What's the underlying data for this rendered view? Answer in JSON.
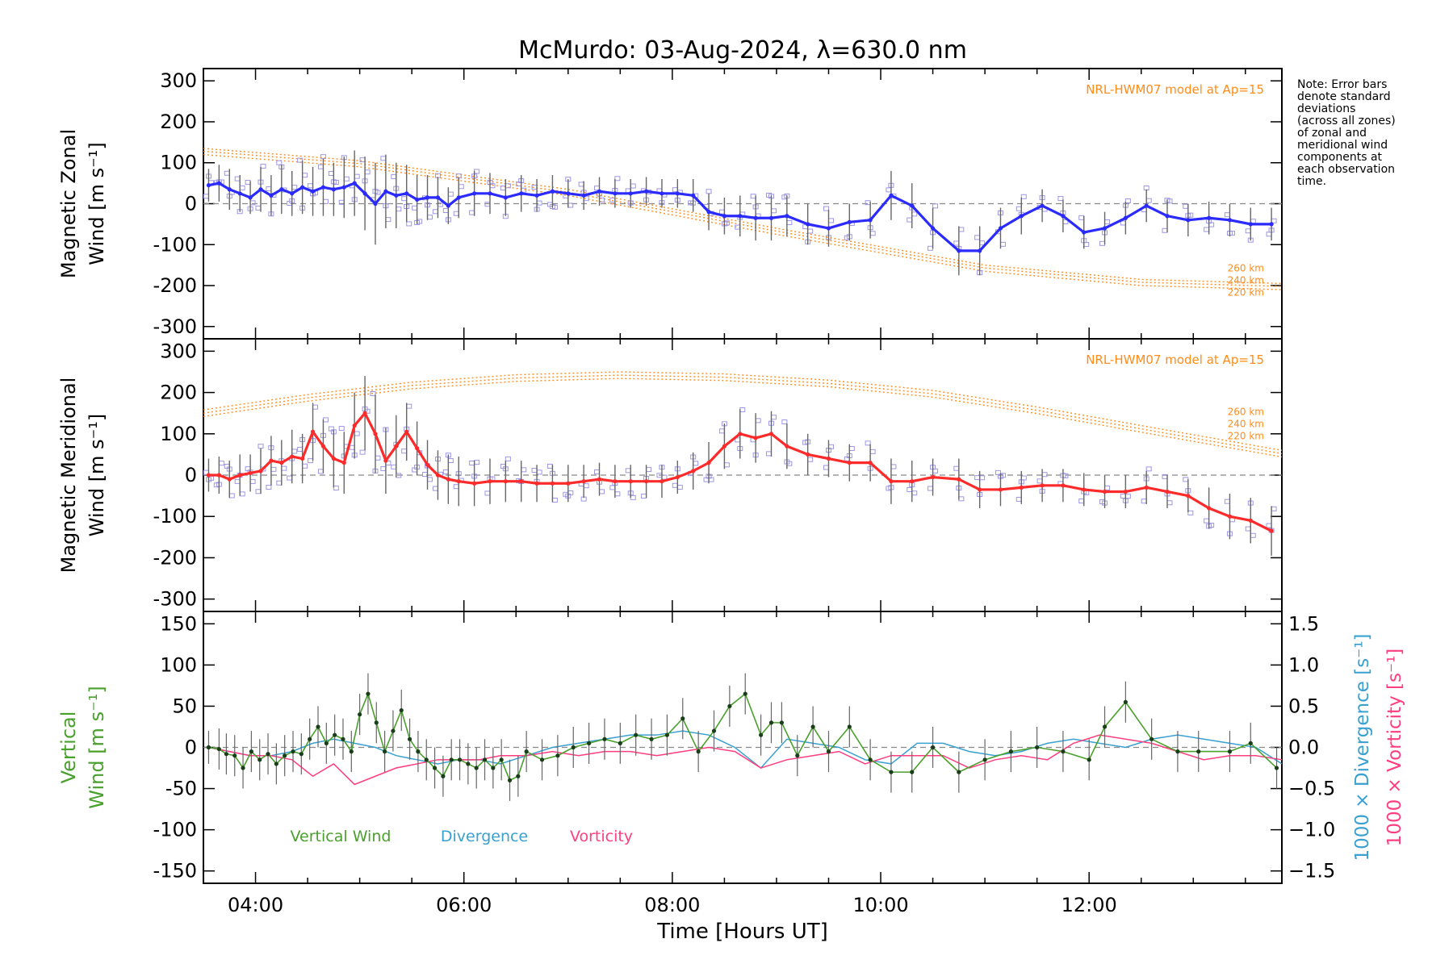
{
  "title": "McMurdo: 03-Aug-2024, λ=630.0 nm",
  "note_lines": [
    "Note: Error bars",
    "denote standard",
    "deviations",
    "(across all zones)",
    "of zonal and",
    "meridional wind",
    "components at",
    "each observation",
    "time."
  ],
  "colors": {
    "zonal": "#2b2bff",
    "meridional": "#ff2b2b",
    "vertical": "#4aa02c",
    "divergence": "#3aa0d0",
    "vorticity": "#ff3d7f",
    "model": "#ff8c1a",
    "scatter": "#9d96e6",
    "errorbar": "#666666"
  },
  "chart_data": [
    {
      "type": "line",
      "name": "zonal",
      "ylabel_lines": [
        "Magnetic Zonal",
        "Wind [m s⁻¹]"
      ],
      "ylim": [
        -330,
        330
      ],
      "yticks": [
        300,
        200,
        100,
        0,
        -100,
        -200,
        -300
      ],
      "xlim": [
        3.5,
        13.85
      ],
      "model_label": "NRL-HWM07 model at Ap=15",
      "model_altitudes": [
        "260 km",
        "240 km",
        "220 km"
      ],
      "model_curves": [
        {
          "x": [
            3.5,
            5,
            7,
            9,
            11,
            12.5,
            13.85
          ],
          "y": [
            135,
            105,
            35,
            -60,
            -150,
            -185,
            -195
          ]
        },
        {
          "x": [
            3.5,
            5,
            7,
            9,
            11,
            12.5,
            13.85
          ],
          "y": [
            128,
            98,
            28,
            -67,
            -157,
            -192,
            -202
          ]
        },
        {
          "x": [
            3.5,
            5,
            7,
            9,
            11,
            12.5,
            13.85
          ],
          "y": [
            120,
            90,
            20,
            -75,
            -165,
            -200,
            -210
          ]
        }
      ],
      "x": [
        3.55,
        3.65,
        3.75,
        3.85,
        3.95,
        4.05,
        4.15,
        4.25,
        4.35,
        4.45,
        4.55,
        4.65,
        4.75,
        4.85,
        4.95,
        5.05,
        5.15,
        5.25,
        5.35,
        5.45,
        5.55,
        5.65,
        5.75,
        5.85,
        5.95,
        6.1,
        6.25,
        6.4,
        6.55,
        6.7,
        6.85,
        7.0,
        7.15,
        7.3,
        7.45,
        7.6,
        7.75,
        7.9,
        8.05,
        8.2,
        8.35,
        8.5,
        8.65,
        8.8,
        8.95,
        9.1,
        9.3,
        9.5,
        9.7,
        9.9,
        10.1,
        10.3,
        10.5,
        10.75,
        10.95,
        11.15,
        11.35,
        11.55,
        11.75,
        11.95,
        12.15,
        12.35,
        12.55,
        12.75,
        12.95,
        13.15,
        13.35,
        13.55,
        13.75
      ],
      "values": [
        45,
        50,
        35,
        25,
        15,
        35,
        20,
        35,
        25,
        40,
        30,
        40,
        35,
        40,
        50,
        25,
        0,
        30,
        20,
        25,
        10,
        15,
        15,
        -5,
        15,
        25,
        25,
        15,
        25,
        20,
        30,
        25,
        20,
        30,
        25,
        25,
        30,
        25,
        25,
        20,
        -20,
        -30,
        -30,
        -35,
        -35,
        -30,
        -50,
        -60,
        -45,
        -40,
        20,
        -5,
        -60,
        -115,
        -115,
        -60,
        -30,
        -5,
        -30,
        -70,
        -60,
        -35,
        -5,
        -30,
        -40,
        -35,
        -40,
        -50,
        -50
      ],
      "errors": [
        40,
        45,
        50,
        45,
        40,
        55,
        50,
        60,
        55,
        65,
        60,
        70,
        65,
        75,
        80,
        90,
        100,
        90,
        80,
        70,
        60,
        55,
        50,
        45,
        50,
        55,
        50,
        45,
        45,
        40,
        40,
        35,
        35,
        35,
        35,
        35,
        35,
        35,
        35,
        40,
        45,
        45,
        50,
        55,
        55,
        50,
        50,
        45,
        45,
        45,
        60,
        55,
        50,
        60,
        60,
        50,
        45,
        40,
        40,
        40,
        40,
        40,
        40,
        40,
        40,
        40,
        40,
        40,
        40
      ]
    },
    {
      "type": "line",
      "name": "meridional",
      "ylabel_lines": [
        "Magnetic Meridional",
        "Wind [m s⁻¹]"
      ],
      "ylim": [
        -330,
        330
      ],
      "yticks": [
        300,
        200,
        100,
        0,
        -100,
        -200,
        -300
      ],
      "xlim": [
        3.5,
        13.85
      ],
      "model_label": "NRL-HWM07 model at Ap=15",
      "model_altitudes": [
        "260 km",
        "240 km",
        "220 km"
      ],
      "model_curves": [
        {
          "x": [
            3.5,
            4.5,
            5.5,
            6.5,
            7.5,
            8.5,
            9.5,
            10.5,
            11.5,
            12.5,
            13.85
          ],
          "y": [
            158,
            195,
            225,
            243,
            250,
            245,
            230,
            205,
            165,
            120,
            60
          ]
        },
        {
          "x": [
            3.5,
            4.5,
            5.5,
            6.5,
            7.5,
            8.5,
            9.5,
            10.5,
            11.5,
            12.5,
            13.85
          ],
          "y": [
            150,
            187,
            217,
            235,
            242,
            237,
            222,
            197,
            157,
            112,
            52
          ]
        },
        {
          "x": [
            3.5,
            4.5,
            5.5,
            6.5,
            7.5,
            8.5,
            9.5,
            10.5,
            11.5,
            12.5,
            13.85
          ],
          "y": [
            142,
            179,
            209,
            227,
            234,
            229,
            214,
            189,
            149,
            104,
            44
          ]
        }
      ],
      "x": [
        3.55,
        3.65,
        3.75,
        3.85,
        3.95,
        4.05,
        4.15,
        4.25,
        4.35,
        4.45,
        4.55,
        4.65,
        4.75,
        4.85,
        4.95,
        5.05,
        5.15,
        5.25,
        5.35,
        5.45,
        5.55,
        5.65,
        5.75,
        5.85,
        5.95,
        6.1,
        6.25,
        6.4,
        6.55,
        6.7,
        6.85,
        7.0,
        7.15,
        7.3,
        7.45,
        7.6,
        7.75,
        7.9,
        8.05,
        8.2,
        8.35,
        8.5,
        8.65,
        8.8,
        8.95,
        9.1,
        9.3,
        9.5,
        9.7,
        9.9,
        10.1,
        10.3,
        10.5,
        10.75,
        10.95,
        11.15,
        11.35,
        11.55,
        11.75,
        11.95,
        12.15,
        12.35,
        12.55,
        12.75,
        12.95,
        13.15,
        13.35,
        13.55,
        13.75
      ],
      "values": [
        0,
        0,
        -10,
        0,
        5,
        10,
        35,
        30,
        45,
        40,
        105,
        70,
        40,
        30,
        120,
        150,
        100,
        35,
        70,
        105,
        65,
        25,
        0,
        -10,
        -15,
        -20,
        -15,
        -15,
        -15,
        -20,
        -20,
        -20,
        -15,
        -10,
        -15,
        -15,
        -15,
        -15,
        -5,
        10,
        30,
        70,
        100,
        90,
        100,
        70,
        50,
        40,
        30,
        30,
        -15,
        -15,
        -5,
        -10,
        -35,
        -35,
        -30,
        -25,
        -25,
        -35,
        -40,
        -40,
        -30,
        -40,
        -50,
        -80,
        -100,
        -110,
        -135
      ],
      "errors": [
        40,
        45,
        45,
        50,
        45,
        55,
        60,
        55,
        65,
        60,
        70,
        65,
        70,
        75,
        80,
        90,
        95,
        80,
        75,
        70,
        65,
        60,
        60,
        60,
        60,
        55,
        55,
        50,
        50,
        45,
        45,
        45,
        40,
        40,
        40,
        40,
        40,
        40,
        40,
        45,
        50,
        55,
        60,
        60,
        55,
        55,
        50,
        45,
        45,
        45,
        55,
        50,
        45,
        50,
        45,
        40,
        40,
        40,
        40,
        40,
        40,
        40,
        40,
        40,
        40,
        50,
        55,
        55,
        60
      ]
    },
    {
      "type": "line",
      "name": "vertical",
      "ylabel_lines": [
        "Vertical",
        "Wind [m s⁻¹]"
      ],
      "ylabel_right1": "1000 × Divergence [s⁻¹]",
      "ylabel_right2": "1000 × Vorticity [s⁻¹]",
      "ylim": [
        -165,
        165
      ],
      "yticks": [
        150,
        100,
        50,
        0,
        -50,
        -100,
        -150
      ],
      "right_ylim": [
        -1.65,
        1.65
      ],
      "right_yticks": [
        1.5,
        1.0,
        0.5,
        0.0,
        -0.5,
        -1.0,
        -1.5
      ],
      "right_tick_labels": [
        "1.5",
        "1.0",
        "0.5",
        "0.0",
        "−0.5",
        "−1.0",
        "−1.5"
      ],
      "xlim": [
        3.5,
        13.85
      ],
      "xticks": [
        4,
        6,
        8,
        10,
        12
      ],
      "xtick_labels": [
        "04:00",
        "06:00",
        "08:00",
        "10:00",
        "12:00"
      ],
      "xlabel": "Time [Hours UT]",
      "legend": [
        "Vertical Wind",
        "Divergence",
        "Vorticity"
      ],
      "series": [
        {
          "name": "Vertical Wind",
          "x": [
            3.55,
            3.65,
            3.72,
            3.8,
            3.88,
            3.96,
            4.04,
            4.12,
            4.2,
            4.28,
            4.36,
            4.44,
            4.52,
            4.6,
            4.68,
            4.76,
            4.84,
            4.92,
            5.0,
            5.08,
            5.16,
            5.24,
            5.32,
            5.4,
            5.48,
            5.56,
            5.64,
            5.72,
            5.8,
            5.88,
            5.96,
            6.04,
            6.12,
            6.2,
            6.28,
            6.36,
            6.44,
            6.52,
            6.6,
            6.75,
            6.9,
            7.05,
            7.2,
            7.35,
            7.5,
            7.65,
            7.8,
            7.95,
            8.1,
            8.25,
            8.4,
            8.55,
            8.7,
            8.85,
            8.95,
            9.05,
            9.2,
            9.35,
            9.5,
            9.7,
            9.9,
            10.1,
            10.3,
            10.5,
            10.75,
            11.0,
            11.25,
            11.5,
            11.75,
            12.0,
            12.15,
            12.35,
            12.6,
            12.85,
            13.05,
            13.35,
            13.55,
            13.8
          ],
          "values": [
            0,
            -2,
            -8,
            -10,
            -25,
            -5,
            -15,
            -8,
            -20,
            -10,
            -5,
            -8,
            10,
            25,
            5,
            15,
            10,
            -5,
            40,
            65,
            30,
            -5,
            20,
            45,
            10,
            -5,
            -15,
            -25,
            -35,
            -15,
            -15,
            -20,
            -25,
            -15,
            -25,
            -15,
            -40,
            -35,
            -5,
            -15,
            -10,
            0,
            5,
            10,
            5,
            15,
            10,
            15,
            35,
            -5,
            20,
            50,
            65,
            15,
            30,
            30,
            -10,
            25,
            -5,
            25,
            -15,
            -30,
            -30,
            0,
            -30,
            -15,
            -5,
            0,
            -5,
            -15,
            25,
            55,
            10,
            -5,
            -5,
            -5,
            5,
            -25
          ],
          "errors": [
            20,
            25,
            25,
            25,
            25,
            25,
            25,
            25,
            25,
            25,
            25,
            25,
            25,
            25,
            25,
            25,
            25,
            25,
            25,
            25,
            25,
            25,
            25,
            25,
            25,
            25,
            25,
            25,
            25,
            25,
            25,
            25,
            25,
            25,
            25,
            25,
            25,
            25,
            25,
            25,
            25,
            25,
            25,
            25,
            25,
            25,
            25,
            25,
            25,
            25,
            25,
            25,
            25,
            25,
            25,
            25,
            25,
            25,
            25,
            25,
            25,
            25,
            25,
            25,
            25,
            25,
            25,
            25,
            25,
            25,
            25,
            25,
            25,
            25,
            25,
            25,
            25,
            25
          ]
        },
        {
          "name": "Divergence",
          "x": [
            3.55,
            3.75,
            3.95,
            4.15,
            4.35,
            4.55,
            4.75,
            4.95,
            5.15,
            5.35,
            5.55,
            5.75,
            5.95,
            6.15,
            6.35,
            6.6,
            6.85,
            7.1,
            7.35,
            7.6,
            7.85,
            8.1,
            8.35,
            8.6,
            8.85,
            9.1,
            9.35,
            9.6,
            9.85,
            10.1,
            10.35,
            10.6,
            10.85,
            11.1,
            11.35,
            11.6,
            11.85,
            12.1,
            12.35,
            12.6,
            12.85,
            13.1,
            13.35,
            13.6,
            13.85
          ],
          "values": [
            0.0,
            -0.05,
            -0.1,
            -0.1,
            -0.05,
            0.05,
            0.1,
            0.05,
            0.0,
            -0.1,
            -0.15,
            -0.2,
            -0.15,
            -0.15,
            -0.2,
            -0.1,
            0.0,
            0.05,
            0.1,
            0.15,
            0.15,
            0.2,
            0.15,
            0.0,
            -0.25,
            0.1,
            0.05,
            0.0,
            -0.15,
            -0.2,
            0.05,
            0.05,
            -0.05,
            -0.1,
            -0.05,
            0.05,
            0.1,
            0.05,
            0.0,
            0.1,
            0.15,
            0.1,
            0.05,
            0.0,
            -0.2
          ]
        },
        {
          "name": "Vorticity",
          "x": [
            3.55,
            3.75,
            3.95,
            4.15,
            4.35,
            4.55,
            4.75,
            4.95,
            5.15,
            5.35,
            5.55,
            5.75,
            5.95,
            6.15,
            6.35,
            6.6,
            6.85,
            7.1,
            7.35,
            7.6,
            7.85,
            8.1,
            8.35,
            8.6,
            8.85,
            9.1,
            9.35,
            9.6,
            9.85,
            10.1,
            10.35,
            10.6,
            10.85,
            11.1,
            11.35,
            11.6,
            11.85,
            12.1,
            12.35,
            12.6,
            12.85,
            13.1,
            13.35,
            13.6,
            13.85
          ],
          "values": [
            0.0,
            -0.05,
            -0.1,
            -0.1,
            -0.15,
            -0.35,
            -0.2,
            -0.45,
            -0.35,
            -0.25,
            -0.2,
            -0.15,
            -0.15,
            -0.15,
            -0.1,
            -0.1,
            -0.05,
            -0.1,
            -0.05,
            -0.05,
            -0.1,
            -0.05,
            0.0,
            -0.05,
            -0.25,
            -0.15,
            -0.1,
            -0.05,
            -0.2,
            -0.1,
            -0.1,
            -0.1,
            -0.25,
            -0.15,
            -0.1,
            -0.15,
            0.05,
            0.15,
            0.1,
            0.05,
            -0.05,
            -0.15,
            -0.1,
            -0.1,
            -0.15
          ]
        }
      ]
    }
  ]
}
